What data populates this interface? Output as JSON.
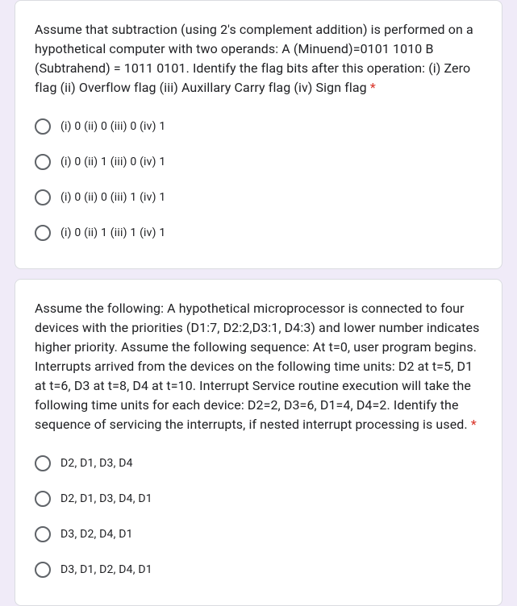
{
  "question1": {
    "text": "Assume that subtraction (using 2's complement addition) is performed on a hypothetical computer with two operands: A (Minuend)=0101 1010 B (Subtrahend) = 1011 0101. Identify the flag bits after this operation: (i) Zero flag (ii) Overflow flag (iii) Auxillary Carry flag (iv) Sign flag",
    "required_mark": "*",
    "options": [
      "(i) 0 (ii) 0 (iii) 0 (iv) 1",
      "(i) 0 (ii) 1 (iii) 0 (iv) 1",
      "(i) 0 (ii) 0 (iii) 1 (iv) 1",
      "(i) 0 (ii) 1 (iii) 1 (iv) 1"
    ]
  },
  "question2": {
    "text": "Assume the following: A hypothetical microprocessor is connected to four devices with the priorities (D1:7, D2:2,D3:1, D4:3) and lower number indicates higher priority. Assume the following sequence: At t=0, user program begins. Interrupts arrived from the devices on the following time units: D2 at t=5, D1 at t=6, D3 at t=8, D4 at t=10. Interrupt Service routine execution will take the following time units for each device: D2=2, D3=6, D1=4, D4=2. Identify the sequence of servicing the interrupts, if nested interrupt processing is used.",
    "required_mark": "*",
    "options": [
      "D2, D1, D3, D4",
      "D2, D1, D3, D4, D1",
      "D3, D2, D4, D1",
      "D3, D1, D2, D4, D1"
    ]
  },
  "colors": {
    "card_bg": "#ffffff",
    "body_bg": "#f0ebf8",
    "text": "#202124",
    "radio_border": "#5f6368",
    "required": "#d93025",
    "card_border": "#dadce0"
  }
}
